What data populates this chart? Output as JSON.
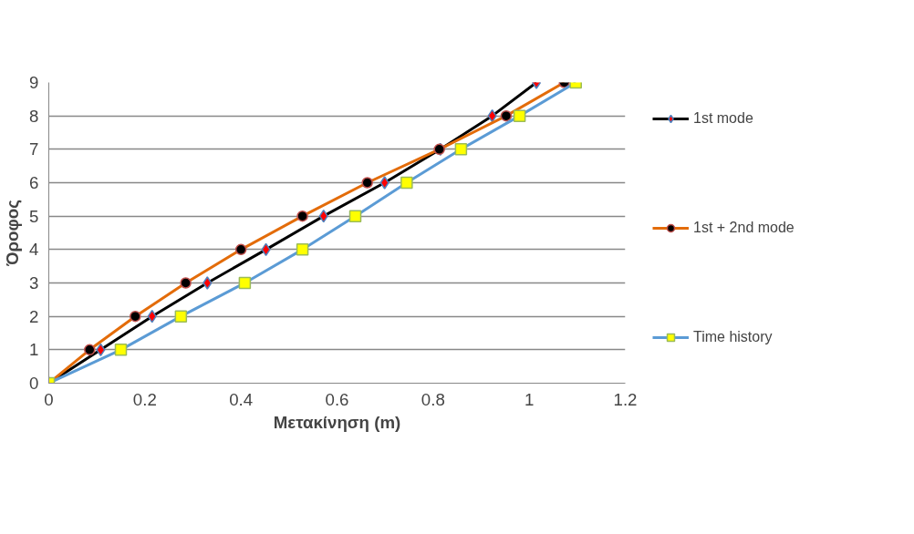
{
  "chart_data": {
    "type": "line",
    "xlabel": "Μετακίνηση (m)",
    "ylabel": "Όροφος",
    "xlim": [
      0,
      1.2
    ],
    "xticks": [
      0,
      0.2,
      0.4,
      0.6,
      0.8,
      1,
      1.2
    ],
    "ylim": [
      0,
      9
    ],
    "yticks": [
      0,
      1,
      2,
      3,
      4,
      5,
      6,
      7,
      8,
      9
    ],
    "grid": "y",
    "legend": "right",
    "series": [
      {
        "name": "1st mode",
        "color": "#000000",
        "marker": "diamond",
        "colors": [
          "#ff0000",
          "#ff0000",
          "#ff0000",
          "#ff0000",
          "#ff0000",
          "#ff0000",
          "#ff0000",
          "#ff0000",
          "#ff0000",
          "#ff0000"
        ],
        "x": [
          0,
          0.108,
          0.215,
          0.33,
          0.452,
          0.572,
          0.699,
          0.815,
          0.923,
          1.015
        ],
        "values": [
          0,
          1,
          2,
          3,
          4,
          5,
          6,
          7,
          8,
          9
        ]
      },
      {
        "name": "1st + 2nd mode",
        "color": "#e36c0a",
        "marker": "circle",
        "colors": [
          "#000000",
          "#000000",
          "#000000",
          "#000000",
          "#000000",
          "#000000",
          "#000000",
          "#000000",
          "#000000",
          "#000000"
        ],
        "x": [
          0,
          0.085,
          0.18,
          0.285,
          0.4,
          0.528,
          0.663,
          0.813,
          0.952,
          1.073
        ],
        "values": [
          0,
          1,
          2,
          3,
          4,
          5,
          6,
          7,
          8,
          9
        ]
      },
      {
        "name": "Time history",
        "color": "#5b9bd5",
        "marker": "square",
        "colors": [
          "#ffff00",
          "#ffff00",
          "#ffff00",
          "#ffff00",
          "#ffff00",
          "#ffff00",
          "#ffff00",
          "#ffff00",
          "#ffff00",
          "#ffff00"
        ],
        "x": [
          0,
          0.15,
          0.275,
          0.408,
          0.528,
          0.638,
          0.745,
          0.858,
          0.98,
          1.097
        ],
        "values": [
          0,
          1,
          2,
          3,
          4,
          5,
          6,
          7,
          8,
          9
        ]
      }
    ]
  }
}
